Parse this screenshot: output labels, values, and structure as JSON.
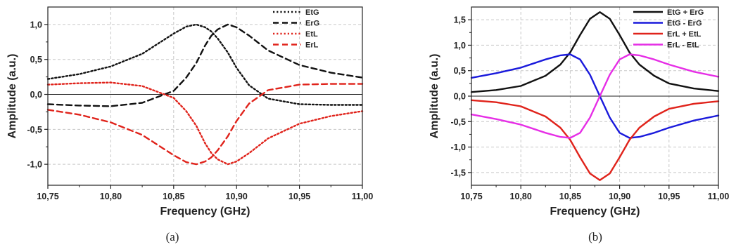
{
  "colors": {
    "black": "#111111",
    "red": "#e0231b",
    "blue": "#1a1adc",
    "magenta": "#e62ee6",
    "grid": "#c8c8c8"
  },
  "chart_data": [
    {
      "type": "line",
      "caption": "(a)",
      "xlabel": "Frequency (GHz)",
      "ylabel": "Amplitude (a.u.)",
      "xlim": [
        10.75,
        11.0
      ],
      "ylim": [
        -1.3,
        1.25
      ],
      "xticks": [
        10.75,
        10.8,
        10.85,
        10.9,
        10.95,
        11.0
      ],
      "xticklabels": [
        "10,75",
        "10,80",
        "10,85",
        "10,90",
        "10,95",
        "11,00"
      ],
      "yticks": [
        -1.0,
        -0.5,
        0.0,
        0.5,
        1.0
      ],
      "yticklabels": [
        "-1,0",
        "-0,5",
        "0,0",
        "0,5",
        "1,0"
      ],
      "grid": true,
      "zero_line": true,
      "legend_position": "top-right",
      "x": [
        10.75,
        10.775,
        10.8,
        10.825,
        10.85,
        10.86,
        10.868,
        10.875,
        10.88,
        10.885,
        10.893,
        10.9,
        10.91,
        10.925,
        10.95,
        10.975,
        11.0
      ],
      "series": [
        {
          "name": "EtG",
          "color": "#111111",
          "dash": "dot",
          "values": [
            0.22,
            0.29,
            0.4,
            0.58,
            0.87,
            0.97,
            1.0,
            0.96,
            0.9,
            0.8,
            0.6,
            0.38,
            0.13,
            -0.06,
            -0.14,
            -0.15,
            -0.15
          ]
        },
        {
          "name": "ErG",
          "color": "#111111",
          "dash": "dash",
          "values": [
            -0.14,
            -0.16,
            -0.17,
            -0.12,
            0.05,
            0.24,
            0.45,
            0.7,
            0.84,
            0.93,
            1.0,
            0.96,
            0.84,
            0.63,
            0.42,
            0.31,
            0.24
          ]
        },
        {
          "name": "EtL",
          "color": "#e0231b",
          "dash": "dot",
          "values": [
            0.14,
            0.16,
            0.17,
            0.12,
            -0.05,
            -0.24,
            -0.45,
            -0.7,
            -0.84,
            -0.93,
            -1.0,
            -0.96,
            -0.84,
            -0.63,
            -0.42,
            -0.31,
            -0.24
          ]
        },
        {
          "name": "ErL",
          "color": "#e0231b",
          "dash": "dash",
          "values": [
            -0.22,
            -0.29,
            -0.4,
            -0.58,
            -0.87,
            -0.97,
            -1.0,
            -0.96,
            -0.9,
            -0.8,
            -0.6,
            -0.38,
            -0.13,
            0.06,
            0.14,
            0.15,
            0.15
          ]
        }
      ]
    },
    {
      "type": "line",
      "caption": "(b)",
      "xlabel": "Frequency (GHz)",
      "ylabel": "Amplitude (a.u.)",
      "xlim": [
        10.75,
        11.0
      ],
      "ylim": [
        -1.75,
        1.75
      ],
      "xticks": [
        10.75,
        10.8,
        10.85,
        10.9,
        10.95,
        11.0
      ],
      "xticklabels": [
        "10,75",
        "10,80",
        "10,85",
        "10,90",
        "10,95",
        "11,00"
      ],
      "yticks": [
        -1.5,
        -1.0,
        -0.5,
        0.0,
        0.5,
        1.0,
        1.5
      ],
      "yticklabels": [
        "-1,5",
        "-1,0",
        "-0,5",
        "0,0",
        "0,5",
        "1,0",
        "1,5"
      ],
      "grid": true,
      "zero_line": true,
      "legend_position": "top-right",
      "x": [
        10.75,
        10.775,
        10.8,
        10.825,
        10.84,
        10.85,
        10.86,
        10.87,
        10.88,
        10.89,
        10.9,
        10.91,
        10.92,
        10.935,
        10.95,
        10.975,
        11.0
      ],
      "series": [
        {
          "name": "EtG + ErG",
          "color": "#111111",
          "dash": "solid",
          "values": [
            0.08,
            0.12,
            0.2,
            0.4,
            0.62,
            0.86,
            1.2,
            1.52,
            1.65,
            1.52,
            1.2,
            0.86,
            0.62,
            0.4,
            0.25,
            0.15,
            0.1
          ]
        },
        {
          "name": "EtG - ErG",
          "color": "#1a1adc",
          "dash": "solid",
          "values": [
            0.36,
            0.45,
            0.56,
            0.72,
            0.8,
            0.82,
            0.72,
            0.42,
            0.0,
            -0.42,
            -0.72,
            -0.82,
            -0.8,
            -0.72,
            -0.62,
            -0.48,
            -0.38
          ]
        },
        {
          "name": "ErL + EtL",
          "color": "#e0231b",
          "dash": "solid",
          "values": [
            -0.08,
            -0.12,
            -0.2,
            -0.4,
            -0.62,
            -0.86,
            -1.2,
            -1.52,
            -1.65,
            -1.52,
            -1.2,
            -0.86,
            -0.62,
            -0.4,
            -0.25,
            -0.15,
            -0.1
          ]
        },
        {
          "name": "ErL - EtL",
          "color": "#e62ee6",
          "dash": "solid",
          "values": [
            -0.36,
            -0.45,
            -0.56,
            -0.72,
            -0.8,
            -0.82,
            -0.72,
            -0.42,
            0.0,
            0.42,
            0.72,
            0.82,
            0.8,
            0.72,
            0.62,
            0.48,
            0.38
          ]
        }
      ]
    }
  ]
}
